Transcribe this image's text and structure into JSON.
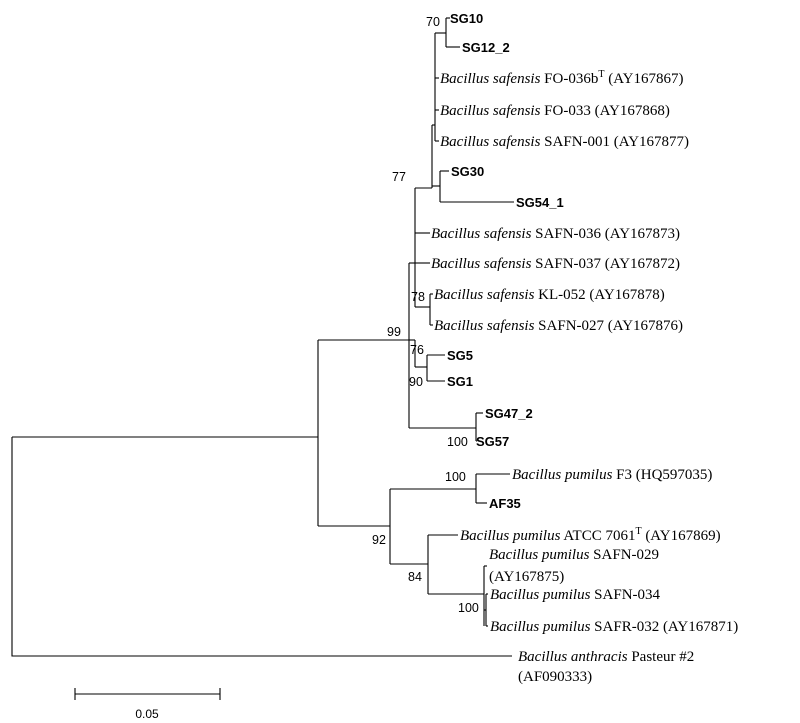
{
  "tree": {
    "taxa": {
      "sg10": "SG10",
      "sg12_2": "SG12_2",
      "fo036b": {
        "genus": "Bacillus safensis",
        "strain": "FO-036b",
        "sup": "T",
        "acc": "(AY167867)"
      },
      "fo033": {
        "genus": "Bacillus safensis",
        "strain": "FO-033 (AY167868)"
      },
      "safn001": {
        "genus": "Bacillus safensis",
        "strain": "SAFN-001 (AY167877)"
      },
      "sg30": "SG30",
      "sg54_1": "SG54_1",
      "safn036": {
        "genus": "Bacillus safensis",
        "strain": "SAFN-036 (AY167873)"
      },
      "safn037": {
        "genus": "Bacillus safensis",
        "strain": "SAFN-037 (AY167872)"
      },
      "kl052": {
        "genus": "Bacillus safensis",
        "strain": "KL-052 (AY167878)"
      },
      "safn027": {
        "genus": "Bacillus safensis",
        "strain": "SAFN-027 (AY167876)"
      },
      "sg5": "SG5",
      "sg1": "SG1",
      "sg47_2": "SG47_2",
      "sg57": "SG57",
      "f3": {
        "genus": "Bacillus pumilus",
        "strain": "F3 (HQ597035)"
      },
      "af35": "AF35",
      "atcc7061": {
        "genus": "Bacillus pumilus",
        "strain": "ATCC 7061",
        "sup": "T",
        "acc": "(AY167869)"
      },
      "safn029": {
        "genus": "Bacillus pumilus",
        "strain": "SAFN-029",
        "acc": "(AY167875)"
      },
      "safn034": {
        "genus": "Bacillus pumilus",
        "strain": "SAFN-034"
      },
      "safr032": {
        "genus": "Bacillus pumilus",
        "strain": "SAFR-032 (AY167871)"
      },
      "anthracis": {
        "genus": "Bacillus anthracis",
        "strain": "Pasteur #2",
        "acc": "(AF090333)"
      }
    },
    "bootstrap": {
      "sg10_sg12": "70",
      "safensis_group": "77",
      "kl052_safn027": "78",
      "sg5_sg1_group": "76",
      "sg5_sg1": "90",
      "safensis_clade": "99",
      "sg47_sg57": "100",
      "f3_af35": "100",
      "pumilus_clade": "92",
      "pumilus_subclade": "84",
      "safn034_safr032": "100"
    },
    "scale_bar": {
      "label": "0.05",
      "value": 0.05
    }
  }
}
